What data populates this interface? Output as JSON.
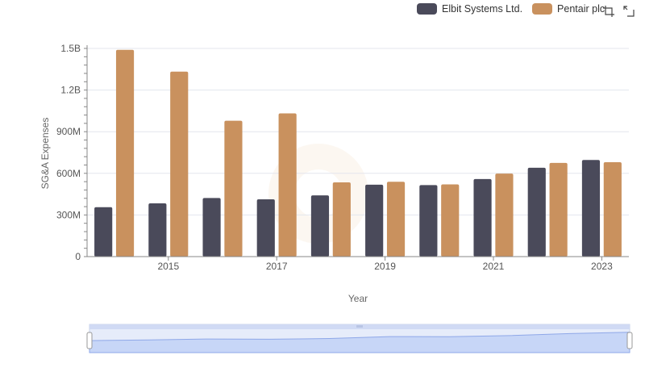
{
  "chart_data": {
    "type": "bar",
    "x": [
      2014,
      2015,
      2016,
      2017,
      2018,
      2019,
      2020,
      2021,
      2022,
      2023
    ],
    "x_tick_labels": [
      "2015",
      "2017",
      "2019",
      "2021",
      "2023"
    ],
    "x_tick_values": [
      2015,
      2017,
      2019,
      2021,
      2023
    ],
    "series": [
      {
        "name": "Elbit Systems Ltd.",
        "color": "#4a4a5a",
        "values": [
          356000000,
          384000000,
          422000000,
          413000000,
          441000000,
          518000000,
          515000000,
          559000000,
          640000000,
          696000000
        ]
      },
      {
        "name": "Pentair plc",
        "color": "#c9915e",
        "values": [
          1490000000,
          1333000000,
          979000000,
          1032000000,
          535000000,
          539000000,
          520000000,
          598000000,
          675000000,
          680000000
        ]
      }
    ],
    "y_ticks": [
      0,
      300000000,
      600000000,
      900000000,
      1200000000,
      1500000000
    ],
    "y_tick_labels": [
      "0",
      "300M",
      "600M",
      "900M",
      "1.2B",
      "1.5B"
    ],
    "ylim": [
      0,
      1500000000
    ],
    "xlabel": "Year",
    "ylabel": "SG&A Expenses",
    "grid": true,
    "legend_position": "top-right"
  },
  "toolbar": {
    "icons": [
      "box-zoom-icon",
      "reset-icon"
    ]
  }
}
